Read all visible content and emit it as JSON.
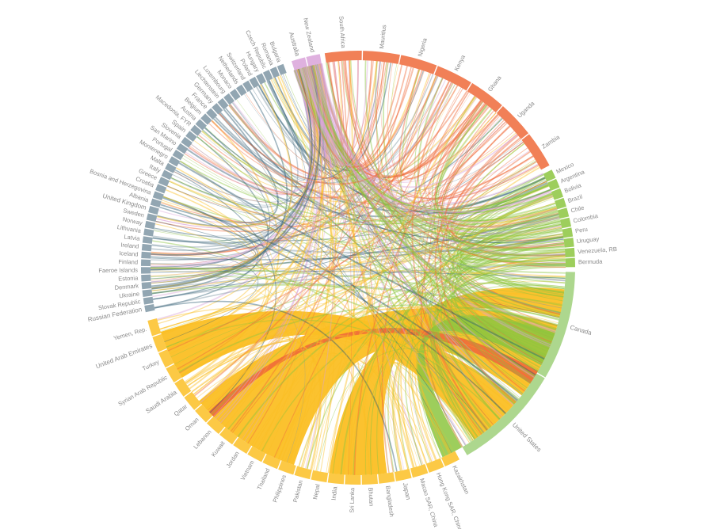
{
  "chart_data": {
    "type": "chord",
    "title": "",
    "regions": [
      {
        "name": "oceania",
        "color": "#d9a3d9",
        "countries": [
          "Australia",
          "New Zealand"
        ]
      },
      {
        "name": "africa",
        "color": "#ef6a3a",
        "countries": [
          "South Africa",
          "Mauritius",
          "Nigeria",
          "Kenya",
          "Ghana",
          "Uganda",
          "Zambia"
        ]
      },
      {
        "name": "latin-america",
        "color": "#8cc63f",
        "countries": [
          "Mexico",
          "Argentina",
          "Bolivia",
          "Brazil",
          "Chile",
          "Colombia",
          "Peru",
          "Uruguay",
          "Venezuela, RB",
          "Bermuda"
        ]
      },
      {
        "name": "north-america",
        "color": "#9fd07a",
        "countries": [
          "Canada",
          "United States"
        ]
      },
      {
        "name": "asia",
        "color": "#fbbf24",
        "countries": [
          "Kazakhstan",
          "Hong Kong SAR, China",
          "Macao SAR, China",
          "Japan",
          "Bangladesh",
          "Bhutan",
          "Sri Lanka",
          "India",
          "Nepal",
          "Pakistan",
          "Philippines",
          "Thailand",
          "Vietnam",
          "Jordan",
          "Kuwait",
          "Lebanon",
          "Oman",
          "Qatar",
          "Saudi Arabia",
          "Syrian Arab Republic",
          "Turkey",
          "United Arab Emirates",
          "Yemen, Rep."
        ]
      },
      {
        "name": "europe",
        "color": "#7f97a4",
        "countries": [
          "Russian Federation",
          "Slovak Republic",
          "Ukraine",
          "Denmark",
          "Estonia",
          "Faeroe Islands",
          "Finland",
          "Iceland",
          "Ireland",
          "Latvia",
          "Lithuania",
          "Norway",
          "Sweden",
          "United Kingdom",
          "Albania",
          "Bosnia and Herzegovina",
          "Croatia",
          "Greece",
          "Italy",
          "Malta",
          "Montenegro",
          "Portugal",
          "San Marino",
          "Slovenia",
          "Spain",
          "Macedonia, FYR",
          "Austria",
          "Belgium",
          "France",
          "Germany",
          "Liechtenstein",
          "Luxembourg",
          "Monaco",
          "Netherlands",
          "Switzerland",
          "Poland",
          "Hungary",
          "Czech Republic",
          "Romania",
          "Bulgaria"
        ]
      }
    ],
    "visible_labels": {
      "north_top": [
        "Australia",
        "New Zealand"
      ],
      "right": [
        "Canada",
        "United States",
        "Mexico",
        "Argentina",
        "Bolivia",
        "Brazil",
        "Chile",
        "Colombia",
        "Peru",
        "Uruguay",
        "Venezuela, RB",
        "Bermuda",
        "South Africa",
        "Mauritius"
      ],
      "bottom": [
        "Kazakhstan",
        "Hong Kong SAR, China",
        "Macao SAR, China",
        "Japan",
        "India",
        "Sri Lanka",
        "Bangladesh",
        "Thailand",
        "Philippines",
        "Jordan",
        "Kuwait",
        "Lebanon",
        "Oman",
        "Qatar",
        "Saudi Arabia",
        "Syrian Arab Republic",
        "Turkey",
        "United Arab Emirates",
        "Yemen, Rep."
      ],
      "left": [
        "Russian Federation",
        "Slovak Republic",
        "Ukraine",
        "Denmark",
        "Faeroe Islands",
        "Finland",
        "Iceland",
        "Ireland",
        "Latvia",
        "Lithuania",
        "Norway",
        "Sweden",
        "United Kingdom",
        "Albania",
        "Bosnia and Herzegovina",
        "Croatia",
        "Greece",
        "Italy",
        "Malta",
        "Montenegro",
        "Portugal",
        "San Marino",
        "Slovenia",
        "Spain",
        "Macedonia, FYR",
        "Austria",
        "Belgium",
        "France",
        "Germany",
        "Liechtenstein",
        "Luxembourg",
        "Monaco",
        "Netherlands",
        "Switzerland",
        "Poland",
        "Hungary",
        "Czech Republic",
        "Romania",
        "Bulgaria"
      ]
    },
    "chord_colors": [
      "#ef6a3a",
      "#8cc63f",
      "#fbbf24",
      "#2f5d73",
      "#d9a3d9",
      "#7f97a4"
    ]
  }
}
